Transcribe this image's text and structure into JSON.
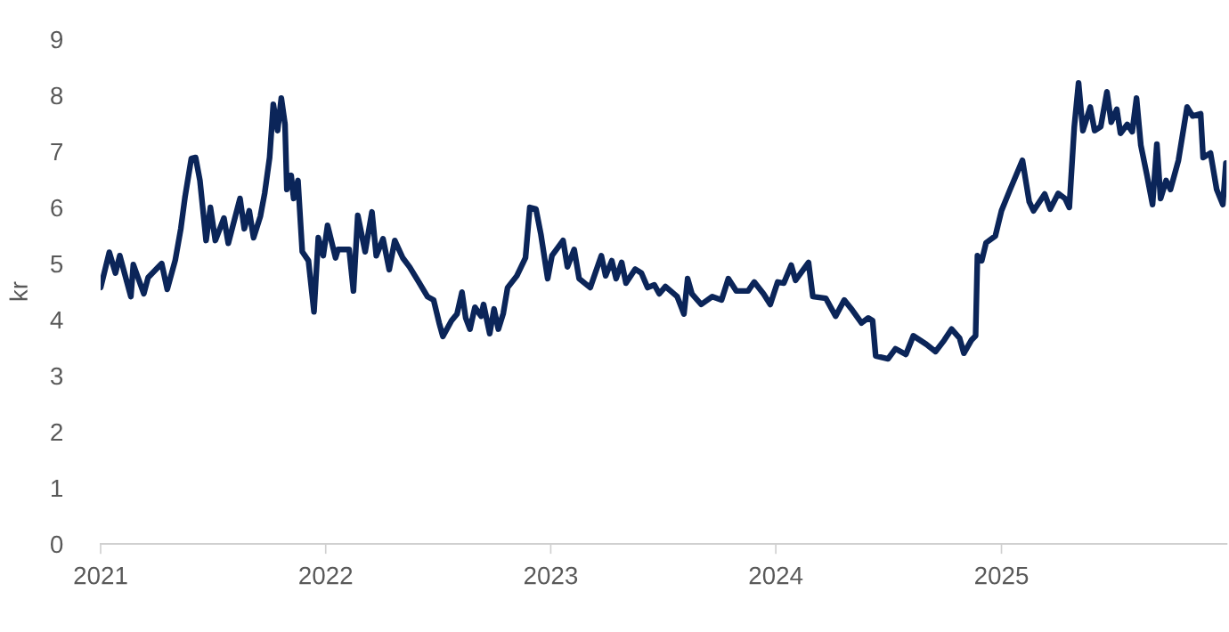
{
  "chart_data": {
    "type": "line",
    "ylabel": "kr",
    "x": [
      "2021-01-01",
      "2021-01-15",
      "2021-01-25",
      "2021-02-01",
      "2021-02-19",
      "2021-02-23",
      "2021-03-12",
      "2021-03-19",
      "2021-04-10",
      "2021-04-19",
      "2021-05-02",
      "2021-05-11",
      "2021-05-18",
      "2021-05-28",
      "2021-06-04",
      "2021-06-11",
      "2021-06-21",
      "2021-06-28",
      "2021-07-06",
      "2021-07-20",
      "2021-07-27",
      "2021-08-15",
      "2021-08-22",
      "2021-08-30",
      "2021-09-06",
      "2021-09-17",
      "2021-09-24",
      "2021-10-02",
      "2021-10-08",
      "2021-10-15",
      "2021-10-21",
      "2021-10-27",
      "2021-10-30",
      "2021-11-06",
      "2021-11-10",
      "2021-11-17",
      "2021-11-24",
      "2021-12-04",
      "2021-12-13",
      "2021-12-20",
      "2021-12-28",
      "2022-01-04",
      "2022-01-17",
      "2022-01-21",
      "2022-02-08",
      "2022-02-15",
      "2022-02-22",
      "2022-03-06",
      "2022-03-17",
      "2022-03-24",
      "2022-04-04",
      "2022-04-14",
      "2022-04-23",
      "2022-05-06",
      "2022-05-17",
      "2022-06-01",
      "2022-06-15",
      "2022-06-25",
      "2022-07-04",
      "2022-07-10",
      "2022-07-24",
      "2022-08-02",
      "2022-08-10",
      "2022-08-16",
      "2022-08-23",
      "2022-08-31",
      "2022-09-10",
      "2022-09-14",
      "2022-09-24",
      "2022-10-01",
      "2022-10-08",
      "2022-10-16",
      "2022-10-23",
      "2022-11-07",
      "2022-11-21",
      "2022-11-28",
      "2022-12-08",
      "2022-12-16",
      "2022-12-27",
      "2023-01-03",
      "2023-01-21",
      "2023-01-28",
      "2023-02-08",
      "2023-02-16",
      "2023-03-06",
      "2023-03-24",
      "2023-03-31",
      "2023-04-10",
      "2023-04-17",
      "2023-04-26",
      "2023-05-03",
      "2023-05-18",
      "2023-05-28",
      "2023-06-07",
      "2023-06-18",
      "2023-06-26",
      "2023-07-06",
      "2023-07-25",
      "2023-08-05",
      "2023-08-11",
      "2023-08-18",
      "2023-09-02",
      "2023-09-20",
      "2023-10-05",
      "2023-10-16",
      "2023-10-29",
      "2023-11-17",
      "2023-11-27",
      "2023-12-12",
      "2023-12-23",
      "2024-01-04",
      "2024-01-14",
      "2024-01-26",
      "2024-02-02",
      "2024-02-23",
      "2024-03-01",
      "2024-03-22",
      "2024-04-07",
      "2024-04-21",
      "2024-05-04",
      "2024-05-19",
      "2024-05-30",
      "2024-06-06",
      "2024-06-11",
      "2024-07-01",
      "2024-07-13",
      "2024-07-30",
      "2024-08-11",
      "2024-09-01",
      "2024-09-16",
      "2024-09-30",
      "2024-10-12",
      "2024-10-25",
      "2024-11-01",
      "2024-11-13",
      "2024-11-20",
      "2024-11-23",
      "2024-11-30",
      "2024-12-07",
      "2024-12-22",
      "2025-01-01",
      "2025-01-15",
      "2025-02-04",
      "2025-02-15",
      "2025-02-22",
      "2025-03-12",
      "2025-03-21",
      "2025-04-03",
      "2025-04-14",
      "2025-04-21",
      "2025-04-29",
      "2025-05-06",
      "2025-05-13",
      "2025-05-25",
      "2025-06-01",
      "2025-06-11",
      "2025-06-21",
      "2025-06-28",
      "2025-07-07",
      "2025-07-13",
      "2025-07-24",
      "2025-08-01",
      "2025-08-08",
      "2025-08-15",
      "2025-08-25",
      "2025-09-03",
      "2025-09-10",
      "2025-09-16",
      "2025-09-25",
      "2025-10-02",
      "2025-10-15",
      "2025-10-29",
      "2025-11-07",
      "2025-11-20",
      "2025-11-24",
      "2025-12-06",
      "2025-12-16",
      "2025-12-26",
      "2025-12-31"
    ],
    "series": [
      {
        "color": "#0b2559",
        "values": [
          4.57,
          5.2,
          4.83,
          5.14,
          4.41,
          4.98,
          4.46,
          4.75,
          5.0,
          4.54,
          5.06,
          5.62,
          6.2,
          6.87,
          6.89,
          6.48,
          5.41,
          6.0,
          5.41,
          5.81,
          5.36,
          6.16,
          5.62,
          5.94,
          5.46,
          5.84,
          6.25,
          6.89,
          7.84,
          7.37,
          7.95,
          7.48,
          6.32,
          6.57,
          6.16,
          6.48,
          5.21,
          5.05,
          4.14,
          5.46,
          5.14,
          5.68,
          5.1,
          5.25,
          5.25,
          4.51,
          5.86,
          5.21,
          5.92,
          5.14,
          5.44,
          4.89,
          5.41,
          5.1,
          4.94,
          4.67,
          4.41,
          4.35,
          3.94,
          3.7,
          3.98,
          4.1,
          4.49,
          4.03,
          3.83,
          4.22,
          4.06,
          4.27,
          3.75,
          4.19,
          3.83,
          4.11,
          4.57,
          4.78,
          5.1,
          6.0,
          5.97,
          5.52,
          4.73,
          5.14,
          5.41,
          4.94,
          5.25,
          4.73,
          4.57,
          5.14,
          4.78,
          5.05,
          4.73,
          5.02,
          4.65,
          4.9,
          4.83,
          4.57,
          4.62,
          4.46,
          4.59,
          4.41,
          4.1,
          4.73,
          4.46,
          4.27,
          4.41,
          4.35,
          4.73,
          4.51,
          4.51,
          4.67,
          4.46,
          4.27,
          4.67,
          4.65,
          4.97,
          4.7,
          5.02,
          4.41,
          4.38,
          4.06,
          4.35,
          4.17,
          3.94,
          4.03,
          3.98,
          3.35,
          3.3,
          3.48,
          3.38,
          3.71,
          3.56,
          3.43,
          3.63,
          3.83,
          3.67,
          3.4,
          3.63,
          3.71,
          5.14,
          5.05,
          5.37,
          5.49,
          5.94,
          6.32,
          6.84,
          6.1,
          5.94,
          6.24,
          5.97,
          6.25,
          6.16,
          6.0,
          7.43,
          8.22,
          7.37,
          7.79,
          7.37,
          7.44,
          8.06,
          7.52,
          7.75,
          7.32,
          7.48,
          7.35,
          7.95,
          7.11,
          6.57,
          6.05,
          7.13,
          6.16,
          6.48,
          6.32,
          6.84,
          7.79,
          7.63,
          7.67,
          6.89,
          6.97,
          6.32,
          6.05,
          6.79
        ]
      }
    ],
    "xlim": [
      "2021-01-01",
      "2026-01-01"
    ],
    "xticks": [
      {
        "value": "2021-01-01",
        "label": "2021"
      },
      {
        "value": "2022-01-01",
        "label": "2022"
      },
      {
        "value": "2023-01-01",
        "label": "2023"
      },
      {
        "value": "2024-01-01",
        "label": "2024"
      },
      {
        "value": "2025-01-01",
        "label": "2025"
      }
    ],
    "ylim": [
      0,
      9
    ],
    "yticks": [
      0,
      1,
      2,
      3,
      4,
      5,
      6,
      7,
      8,
      9
    ],
    "grid": false,
    "marker": "none",
    "line_style": "solid"
  }
}
